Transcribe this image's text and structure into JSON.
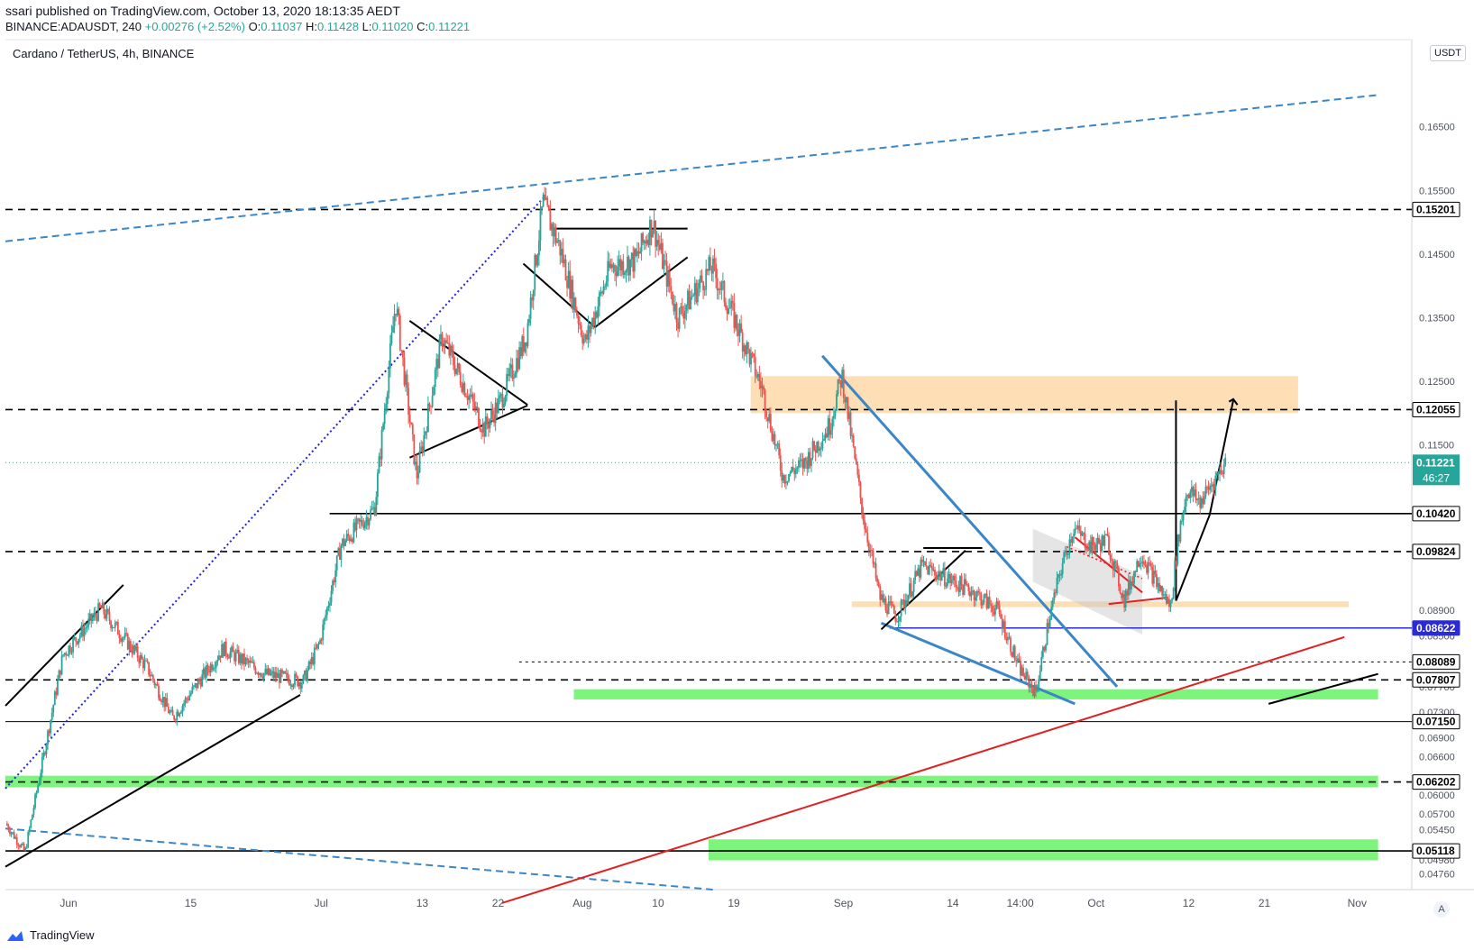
{
  "header": {
    "published": "ssari published on TradingView.com, October 13, 2020 18:13:35 AEDT",
    "symbol_line": "BINANCE:ADAUSDT, 240",
    "change": "+0.00276 (+2.52%)",
    "o_label": "O:",
    "o": "0.11037",
    "h_label": "H:",
    "h": "0.11428",
    "l_label": "L:",
    "l": "0.11020",
    "c_label": "C:",
    "c": "0.11221"
  },
  "chart_title": "Cardano / TetherUS, 4h, BINANCE",
  "currency_button": "USDT",
  "countdown": "46:27",
  "brand": "TradingView",
  "auto_button": "A",
  "colors": {
    "up": "#26a69a",
    "down": "#ef5350",
    "orange_zone": "#fdd8a8",
    "green_zone": "#66f366",
    "trend_blue": "#3a86c8"
  },
  "chart_data": {
    "type": "candlestick",
    "title": "Cardano / TetherUS, 4h, BINANCE",
    "ylim": [
      0.0451,
      0.1787
    ],
    "y_ticks": [
      "0.16500",
      "0.15500",
      "0.14500",
      "0.13500",
      "0.12500",
      "0.11500",
      "0.08900",
      "0.08500",
      "0.07700",
      "0.07300",
      "0.06900",
      "0.06600",
      "0.06000",
      "0.05700",
      "0.05450",
      "0.04980",
      "0.04760"
    ],
    "x_ticks": [
      {
        "label": "Jun",
        "x": 3.5
      },
      {
        "label": "15",
        "x": 18
      },
      {
        "label": "Jul",
        "x": 33.5
      },
      {
        "label": "13",
        "x": 45.5
      },
      {
        "label": "22",
        "x": 54.5
      },
      {
        "label": "Aug",
        "x": 64.5
      },
      {
        "label": "10",
        "x": 73.5
      },
      {
        "label": "19",
        "x": 82.5
      },
      {
        "label": "Sep",
        "x": 95.5
      },
      {
        "label": "14",
        "x": 108.5
      },
      {
        "label": "14:00",
        "x": 116.5
      },
      {
        "label": "Oct",
        "x": 125.5
      },
      {
        "label": "12",
        "x": 136.5
      },
      {
        "label": "21",
        "x": 145.5
      },
      {
        "label": "Nov",
        "x": 156.5
      }
    ],
    "x_domain": [
      -4,
      163
    ],
    "price_levels": [
      {
        "value": 0.15201,
        "label": "0.15201",
        "style": "dashed"
      },
      {
        "value": 0.12055,
        "label": "0.12055",
        "style": "dashed"
      },
      {
        "value": 0.1042,
        "label": "0.10420",
        "style": "solid"
      },
      {
        "value": 0.09824,
        "label": "0.09824",
        "style": "dashed"
      },
      {
        "value": 0.08622,
        "label": "0.08622",
        "style": "solid-blue"
      },
      {
        "value": 0.08089,
        "label": "0.08089",
        "style": "dotted"
      },
      {
        "value": 0.07807,
        "label": "0.07807",
        "style": "dashed"
      },
      {
        "value": 0.0715,
        "label": "0.07150",
        "style": "solid-thin"
      },
      {
        "value": 0.06202,
        "label": "0.06202",
        "style": "dashed"
      },
      {
        "value": 0.05118,
        "label": "0.05118",
        "style": "solid"
      }
    ],
    "current_price": {
      "value": 0.11221,
      "label": "0.11221"
    },
    "key_points": [
      {
        "x": -3.8,
        "y": 0.0555
      },
      {
        "x": -1.5,
        "y": 0.051
      },
      {
        "x": 3,
        "y": 0.082
      },
      {
        "x": 7.5,
        "y": 0.0893
      },
      {
        "x": 13,
        "y": 0.08
      },
      {
        "x": 16,
        "y": 0.072
      },
      {
        "x": 22,
        "y": 0.083
      },
      {
        "x": 27,
        "y": 0.079
      },
      {
        "x": 31.5,
        "y": 0.0778
      },
      {
        "x": 33.5,
        "y": 0.084
      },
      {
        "x": 36,
        "y": 0.0992
      },
      {
        "x": 40,
        "y": 0.105
      },
      {
        "x": 42.5,
        "y": 0.1375
      },
      {
        "x": 45,
        "y": 0.11
      },
      {
        "x": 48,
        "y": 0.132
      },
      {
        "x": 53,
        "y": 0.1175
      },
      {
        "x": 55,
        "y": 0.122
      },
      {
        "x": 58,
        "y": 0.132
      },
      {
        "x": 60,
        "y": 0.153
      },
      {
        "x": 62,
        "y": 0.146
      },
      {
        "x": 65,
        "y": 0.131
      },
      {
        "x": 68,
        "y": 0.143
      },
      {
        "x": 71,
        "y": 0.144
      },
      {
        "x": 73,
        "y": 0.15
      },
      {
        "x": 76,
        "y": 0.135
      },
      {
        "x": 80,
        "y": 0.143
      },
      {
        "x": 83,
        "y": 0.134
      },
      {
        "x": 86,
        "y": 0.124
      },
      {
        "x": 88.5,
        "y": 0.11
      },
      {
        "x": 91,
        "y": 0.112
      },
      {
        "x": 94,
        "y": 0.118
      },
      {
        "x": 95.5,
        "y": 0.126
      },
      {
        "x": 98,
        "y": 0.104
      },
      {
        "x": 100,
        "y": 0.091
      },
      {
        "x": 102,
        "y": 0.088
      },
      {
        "x": 105,
        "y": 0.096
      },
      {
        "x": 108,
        "y": 0.094
      },
      {
        "x": 111,
        "y": 0.092
      },
      {
        "x": 114,
        "y": 0.089
      },
      {
        "x": 116.5,
        "y": 0.08
      },
      {
        "x": 118.5,
        "y": 0.076
      },
      {
        "x": 120,
        "y": 0.087
      },
      {
        "x": 121.5,
        "y": 0.0955
      },
      {
        "x": 123,
        "y": 0.102
      },
      {
        "x": 125,
        "y": 0.099
      },
      {
        "x": 127,
        "y": 0.1
      },
      {
        "x": 129,
        "y": 0.0905
      },
      {
        "x": 131,
        "y": 0.098
      },
      {
        "x": 133,
        "y": 0.093
      },
      {
        "x": 134.5,
        "y": 0.0895
      },
      {
        "x": 135.5,
        "y": 0.101
      },
      {
        "x": 136.5,
        "y": 0.108
      },
      {
        "x": 138,
        "y": 0.106
      },
      {
        "x": 139.5,
        "y": 0.109
      },
      {
        "x": 141,
        "y": 0.1122
      }
    ]
  }
}
